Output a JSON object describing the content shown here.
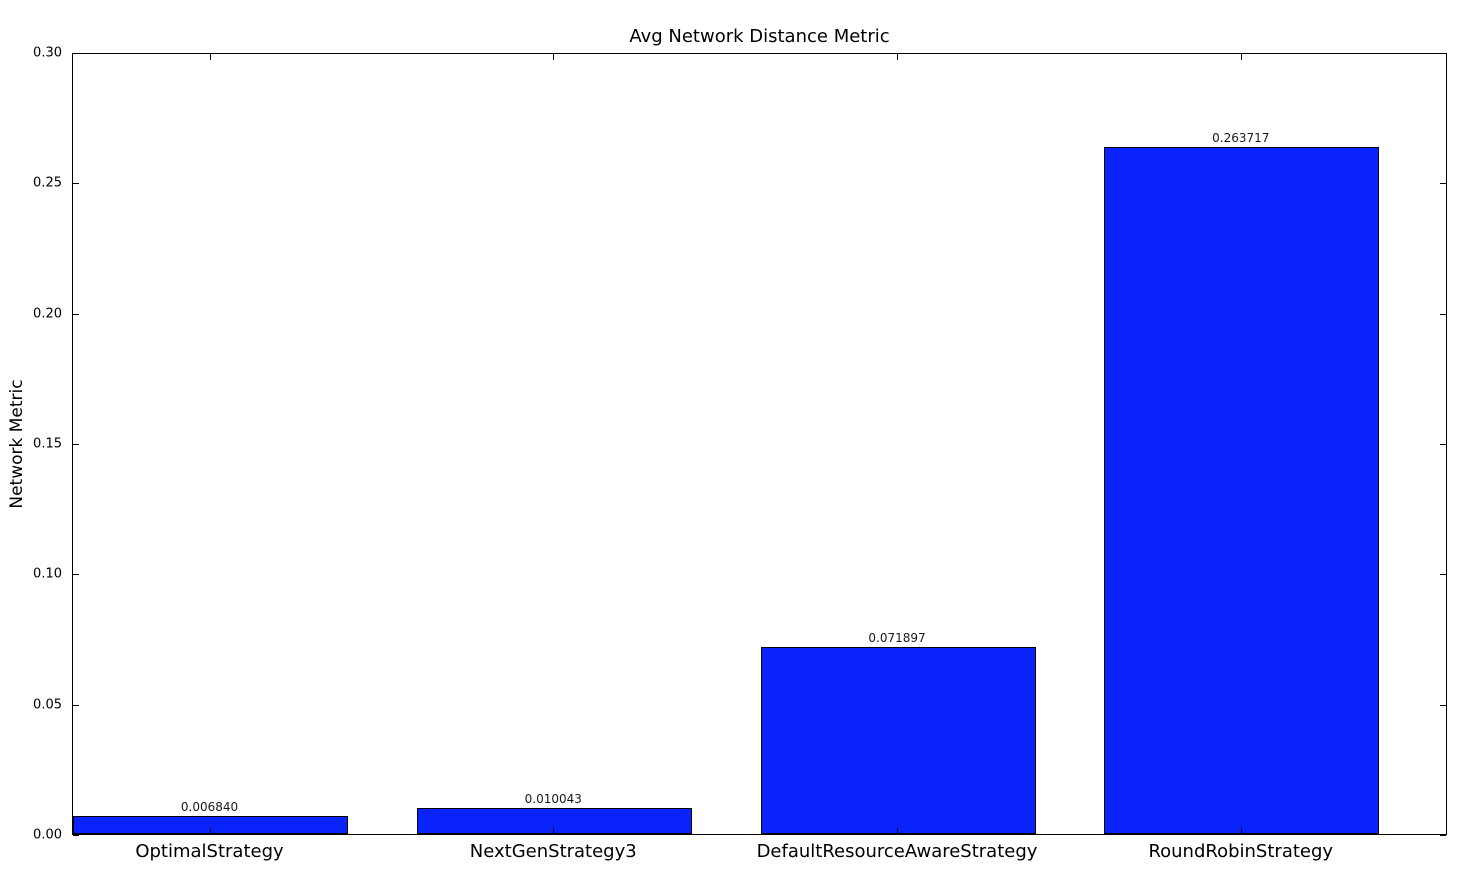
{
  "figure": {
    "background_color": "#ffffff"
  },
  "chart_data": {
    "type": "bar",
    "title": "Avg Network Distance Metric",
    "xlabel": "",
    "ylabel": "Network Metric",
    "categories": [
      "OptimalStrategy",
      "NextGenStrategy3",
      "DefaultResourceAwareStrategy",
      "RoundRobinStrategy"
    ],
    "values": [
      0.00684,
      0.010043,
      0.071897,
      0.263717
    ],
    "value_labels": [
      "0.006840",
      "0.010043",
      "0.071897",
      "0.263717"
    ],
    "ylim": [
      0.0,
      0.3
    ],
    "ytick_labels": [
      "0.00",
      "0.05",
      "0.10",
      "0.15",
      "0.20",
      "0.25",
      "0.30"
    ],
    "grid": false,
    "legend": null,
    "bar_color": "#0b23fb",
    "bar_edge_color": "#000000",
    "axis_color": "#000000",
    "text_color": "#000000"
  }
}
